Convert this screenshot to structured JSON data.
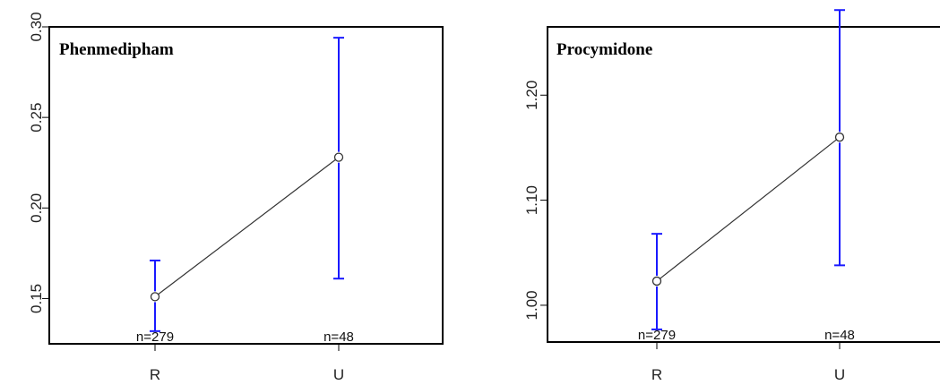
{
  "chart_data": [
    {
      "type": "line",
      "title": "Phenmedipham",
      "categories": [
        "R",
        "U"
      ],
      "ylim": [
        0.125,
        0.3
      ],
      "yticks": [
        0.15,
        0.2,
        0.25,
        0.3
      ],
      "ytick_labels": [
        "0.15",
        "0.20",
        "0.25",
        "0.30"
      ],
      "series": [
        {
          "values": [
            0.151,
            0.228
          ],
          "lower": [
            0.132,
            0.161
          ],
          "upper": [
            0.171,
            0.294
          ],
          "n_labels": [
            "n=279",
            "n=48"
          ]
        }
      ],
      "line_color": "#333333",
      "errorbar_color": "#1a1aff"
    },
    {
      "type": "line",
      "title": "Procymidone",
      "categories": [
        "R",
        "U"
      ],
      "ylim": [
        0.965,
        1.265
      ],
      "yticks": [
        1.0,
        1.1,
        1.2
      ],
      "ytick_labels": [
        "1.00",
        "1.10",
        "1.20"
      ],
      "series": [
        {
          "values": [
            1.023,
            1.16
          ],
          "lower": [
            0.977,
            1.038
          ],
          "upper": [
            1.068,
            1.281
          ],
          "n_labels": [
            "n=279",
            "n=48"
          ]
        }
      ],
      "line_color": "#333333",
      "errorbar_color": "#1a1aff"
    }
  ]
}
